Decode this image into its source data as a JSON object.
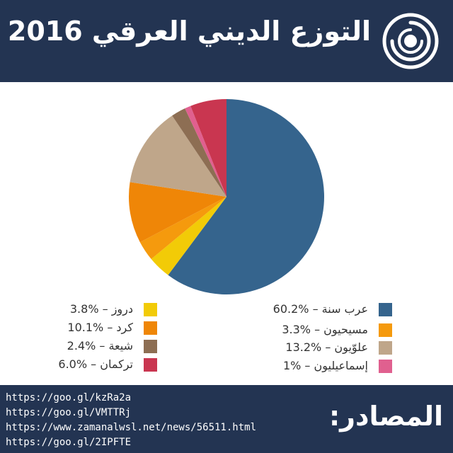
{
  "header": {
    "title": "التوزع الديني العرقي 2016",
    "logo_icon": "concentric-circles-logo-icon"
  },
  "chart_data": {
    "type": "pie",
    "start_angle_deg": 0,
    "direction": "clockwise",
    "slices": [
      {
        "label": "عرب سنة",
        "value": 60.2,
        "color": "#35648d",
        "text": "عرب سنة – %60.2"
      },
      {
        "label": "دروز",
        "value": 3.8,
        "color": "#f2cb07",
        "text": "دروز – %3.8"
      },
      {
        "label": "مسيحيون",
        "value": 3.3,
        "color": "#f59a0d",
        "text": "مسيحيون – %3.3"
      },
      {
        "label": "كرد",
        "value": 10.1,
        "color": "#ef8607",
        "text": "كرد – %10.1"
      },
      {
        "label": "علوّيون",
        "value": 13.2,
        "color": "#bfa68a",
        "text": "علوّيون – %13.2"
      },
      {
        "label": "شيعة",
        "value": 2.4,
        "color": "#8d6e53",
        "text": "شيعة – %2.4"
      },
      {
        "label": "إسماعيليون",
        "value": 1,
        "color": "#e0608f",
        "text": "إسماعيليون – %1"
      },
      {
        "label": "تركمان",
        "value": 6.0,
        "color": "#c93650",
        "text": "تركمان – %6.0"
      }
    ],
    "legend_placement": "bottom"
  },
  "legend": {
    "right_column": [
      {
        "text": "عرب سنة – %60.2",
        "color": "#35648d"
      },
      {
        "text": "مسيحيون – %3.3",
        "color": "#f59a0d"
      },
      {
        "text": "علوّيون – %13.2",
        "color": "#bfa68a"
      },
      {
        "text": "إسماعيليون – %1",
        "color": "#e0608f"
      }
    ],
    "left_column": [
      {
        "text": "دروز – %3.8",
        "color": "#f2cb07"
      },
      {
        "text": "كرد – %10.1",
        "color": "#ef8607"
      },
      {
        "text": "شيعة – %2.4",
        "color": "#8d6e53"
      },
      {
        "text": "تركمان – %6.0",
        "color": "#c93650"
      }
    ]
  },
  "footer": {
    "sources_title": "المصادر:",
    "links": [
      "https://goo.gl/kzRa2a",
      "https://goo.gl/VMTTRj",
      "https://www.zamanalwsl.net/news/56511.html",
      "https://goo.gl/2IPFTE"
    ]
  },
  "colors": {
    "header_bg": "#233452",
    "footer_bg": "#233452"
  }
}
